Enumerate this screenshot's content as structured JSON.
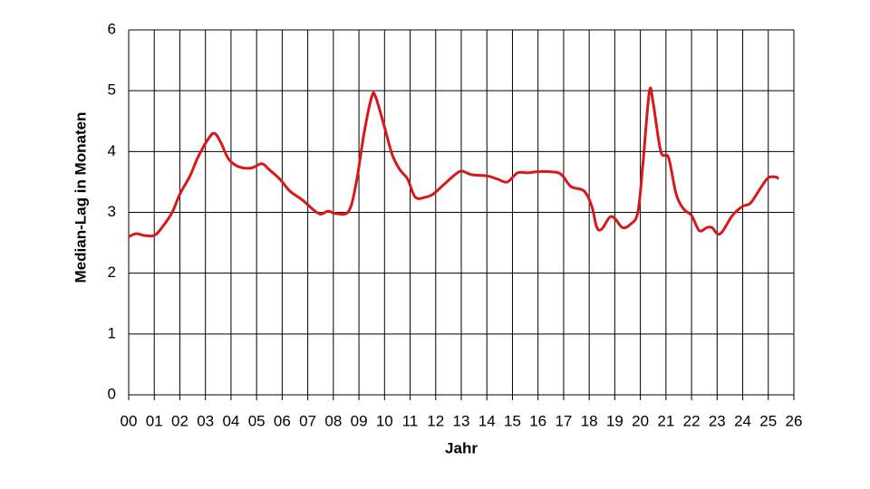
{
  "chart_data": {
    "type": "line",
    "x_label": "Jahr",
    "y_label": "Median-Lag in Monaten",
    "x": [
      0,
      0.3,
      0.6,
      1.0,
      1.3,
      1.7,
      2.0,
      2.4,
      2.7,
      3.1,
      3.35,
      3.6,
      3.9,
      4.3,
      4.8,
      5.2,
      5.5,
      5.9,
      6.3,
      6.8,
      7.2,
      7.5,
      7.8,
      8.1,
      8.6,
      8.9,
      9.2,
      9.5,
      9.65,
      10.0,
      10.3,
      10.6,
      10.9,
      11.2,
      11.6,
      11.9,
      12.3,
      12.7,
      13.0,
      13.4,
      14.0,
      14.4,
      14.8,
      15.2,
      15.6,
      16.0,
      16.4,
      16.8,
      17.0,
      17.3,
      17.8,
      18.1,
      18.3,
      18.5,
      18.8,
      19.0,
      19.3,
      19.6,
      19.9,
      20.1,
      20.35,
      20.5,
      20.8,
      21.1,
      21.4,
      21.7,
      22.0,
      22.3,
      22.6,
      22.8,
      23.0,
      23.2,
      23.6,
      24.0,
      24.3,
      24.7,
      25.0,
      25.3,
      25.4
    ],
    "series": [
      {
        "name": "Median-Lag",
        "color": "#d7191c",
        "values": [
          2.6,
          2.65,
          2.62,
          2.62,
          2.75,
          3.0,
          3.3,
          3.6,
          3.9,
          4.2,
          4.3,
          4.15,
          3.88,
          3.75,
          3.73,
          3.8,
          3.7,
          3.55,
          3.35,
          3.2,
          3.05,
          2.97,
          3.02,
          2.98,
          3.02,
          3.5,
          4.3,
          4.9,
          4.9,
          4.4,
          3.95,
          3.7,
          3.55,
          3.25,
          3.25,
          3.3,
          3.45,
          3.6,
          3.68,
          3.62,
          3.6,
          3.55,
          3.5,
          3.65,
          3.65,
          3.67,
          3.67,
          3.65,
          3.58,
          3.42,
          3.35,
          3.1,
          2.75,
          2.73,
          2.92,
          2.9,
          2.75,
          2.8,
          3.0,
          3.8,
          4.98,
          4.8,
          4.0,
          3.9,
          3.3,
          3.05,
          2.95,
          2.7,
          2.75,
          2.75,
          2.65,
          2.68,
          2.95,
          3.1,
          3.15,
          3.4,
          3.57,
          3.58,
          3.55
        ]
      }
    ],
    "xlim": [
      0,
      26
    ],
    "xticks": [
      {
        "value": 0,
        "label": "00"
      },
      {
        "value": 1,
        "label": "01"
      },
      {
        "value": 2,
        "label": "02"
      },
      {
        "value": 3,
        "label": "03"
      },
      {
        "value": 4,
        "label": "04"
      },
      {
        "value": 5,
        "label": "05"
      },
      {
        "value": 6,
        "label": "06"
      },
      {
        "value": 7,
        "label": "07"
      },
      {
        "value": 8,
        "label": "08"
      },
      {
        "value": 9,
        "label": "09"
      },
      10,
      11,
      12,
      13,
      14,
      15,
      16,
      17,
      18,
      19,
      20,
      21,
      22,
      23,
      24,
      25,
      26
    ],
    "ylim": [
      0,
      6
    ],
    "yticks": [
      0,
      1,
      2,
      3,
      4,
      5,
      6
    ],
    "grid": true
  }
}
